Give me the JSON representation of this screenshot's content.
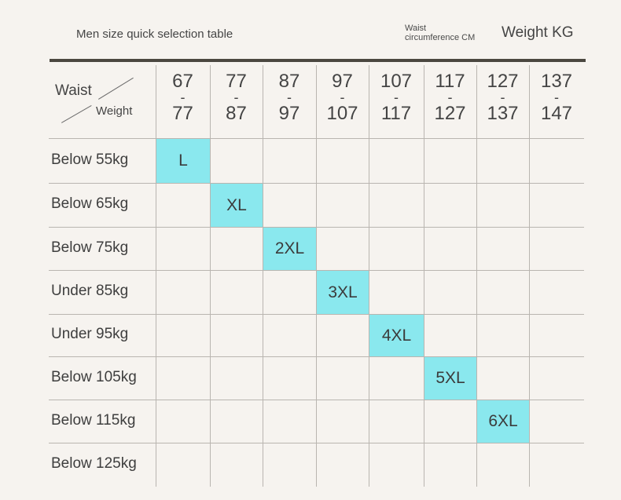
{
  "title": "Men size quick selection table",
  "legend": {
    "waist_line1": "Waist",
    "waist_line2": "circumference CM",
    "weight": "Weight KG"
  },
  "corner": {
    "waist": "Waist",
    "weight": "Weight"
  },
  "columns": [
    {
      "from": "67",
      "to": "77"
    },
    {
      "from": "77",
      "to": "87"
    },
    {
      "from": "87",
      "to": "97"
    },
    {
      "from": "97",
      "to": "107"
    },
    {
      "from": "107",
      "to": "117"
    },
    {
      "from": "117",
      "to": "127"
    },
    {
      "from": "127",
      "to": "137"
    },
    {
      "from": "137",
      "to": "147"
    }
  ],
  "column_separator": "-",
  "rows": [
    {
      "label": "Below 55kg",
      "size": "L"
    },
    {
      "label": "Below 65kg",
      "size": "XL"
    },
    {
      "label": "Below 75kg",
      "size": "2XL"
    },
    {
      "label": "Under 85kg",
      "size": "3XL"
    },
    {
      "label": "Under 95kg",
      "size": "4XL"
    },
    {
      "label": "Below 105kg",
      "size": "5XL"
    },
    {
      "label": "Below 115kg",
      "size": "6XL"
    },
    {
      "label": "Below 125kg",
      "size": ""
    }
  ],
  "colors": {
    "highlight": "#8ae8ee",
    "rule": "#4b4740",
    "background": "#f6f3ef"
  }
}
